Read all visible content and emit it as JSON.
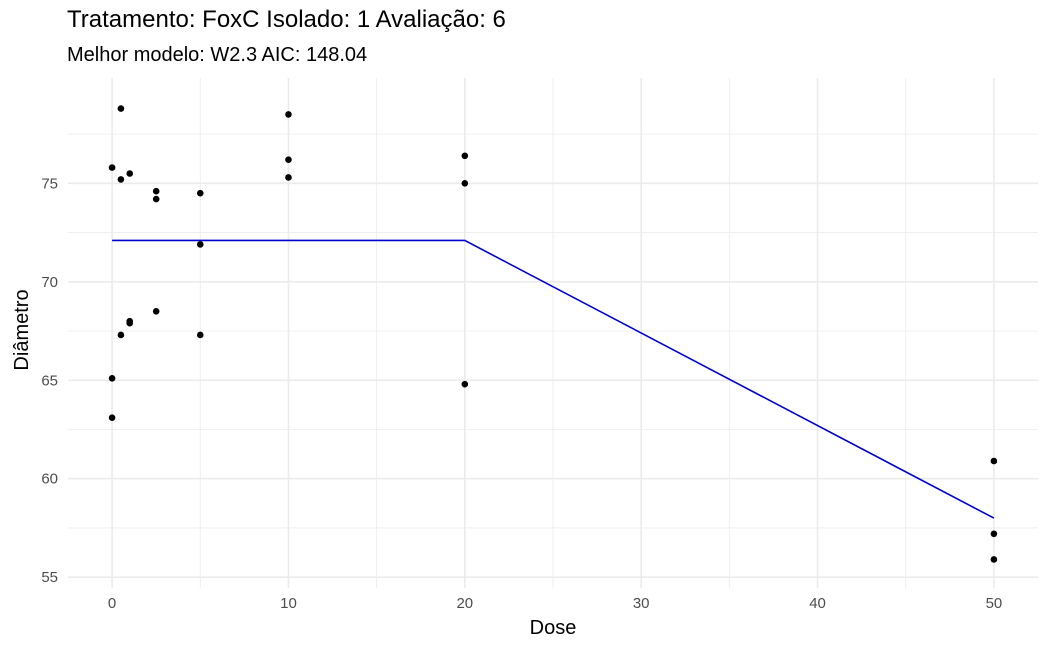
{
  "chart_data": {
    "type": "scatter",
    "title": "Tratamento: FoxC Isolado: 1 Avaliação: 6",
    "subtitle": "Melhor modelo: W2.3 AIC: 148.04",
    "xlabel": "Dose",
    "ylabel": "Diâmetro",
    "xlim": [
      -2.5,
      52.5
    ],
    "ylim": [
      54.45,
      80.35
    ],
    "x_ticks": [
      0,
      10,
      20,
      30,
      40,
      50
    ],
    "y_ticks": [
      55,
      60,
      65,
      70,
      75
    ],
    "grid": true,
    "points": [
      {
        "x": 0,
        "y": 75.8
      },
      {
        "x": 0,
        "y": 65.1
      },
      {
        "x": 0,
        "y": 63.1
      },
      {
        "x": 0.5,
        "y": 78.8
      },
      {
        "x": 0.5,
        "y": 75.2
      },
      {
        "x": 0.5,
        "y": 67.3
      },
      {
        "x": 1,
        "y": 75.5
      },
      {
        "x": 1,
        "y": 68.0
      },
      {
        "x": 1,
        "y": 67.9
      },
      {
        "x": 2.5,
        "y": 74.6
      },
      {
        "x": 2.5,
        "y": 74.2
      },
      {
        "x": 2.5,
        "y": 68.5
      },
      {
        "x": 5,
        "y": 74.5
      },
      {
        "x": 5,
        "y": 71.9
      },
      {
        "x": 5,
        "y": 67.3
      },
      {
        "x": 10,
        "y": 78.5
      },
      {
        "x": 10,
        "y": 76.2
      },
      {
        "x": 10,
        "y": 75.3
      },
      {
        "x": 20,
        "y": 76.4
      },
      {
        "x": 20,
        "y": 75.0
      },
      {
        "x": 20,
        "y": 64.8
      },
      {
        "x": 50,
        "y": 60.9
      },
      {
        "x": 50,
        "y": 57.2
      },
      {
        "x": 50,
        "y": 55.9
      }
    ],
    "fit_line": {
      "color": "#0000cc",
      "x": [
        0,
        20,
        50
      ],
      "y": [
        72.1,
        72.1,
        58.0
      ]
    },
    "point_color": "#000000",
    "grid_color": "#ebebeb"
  }
}
